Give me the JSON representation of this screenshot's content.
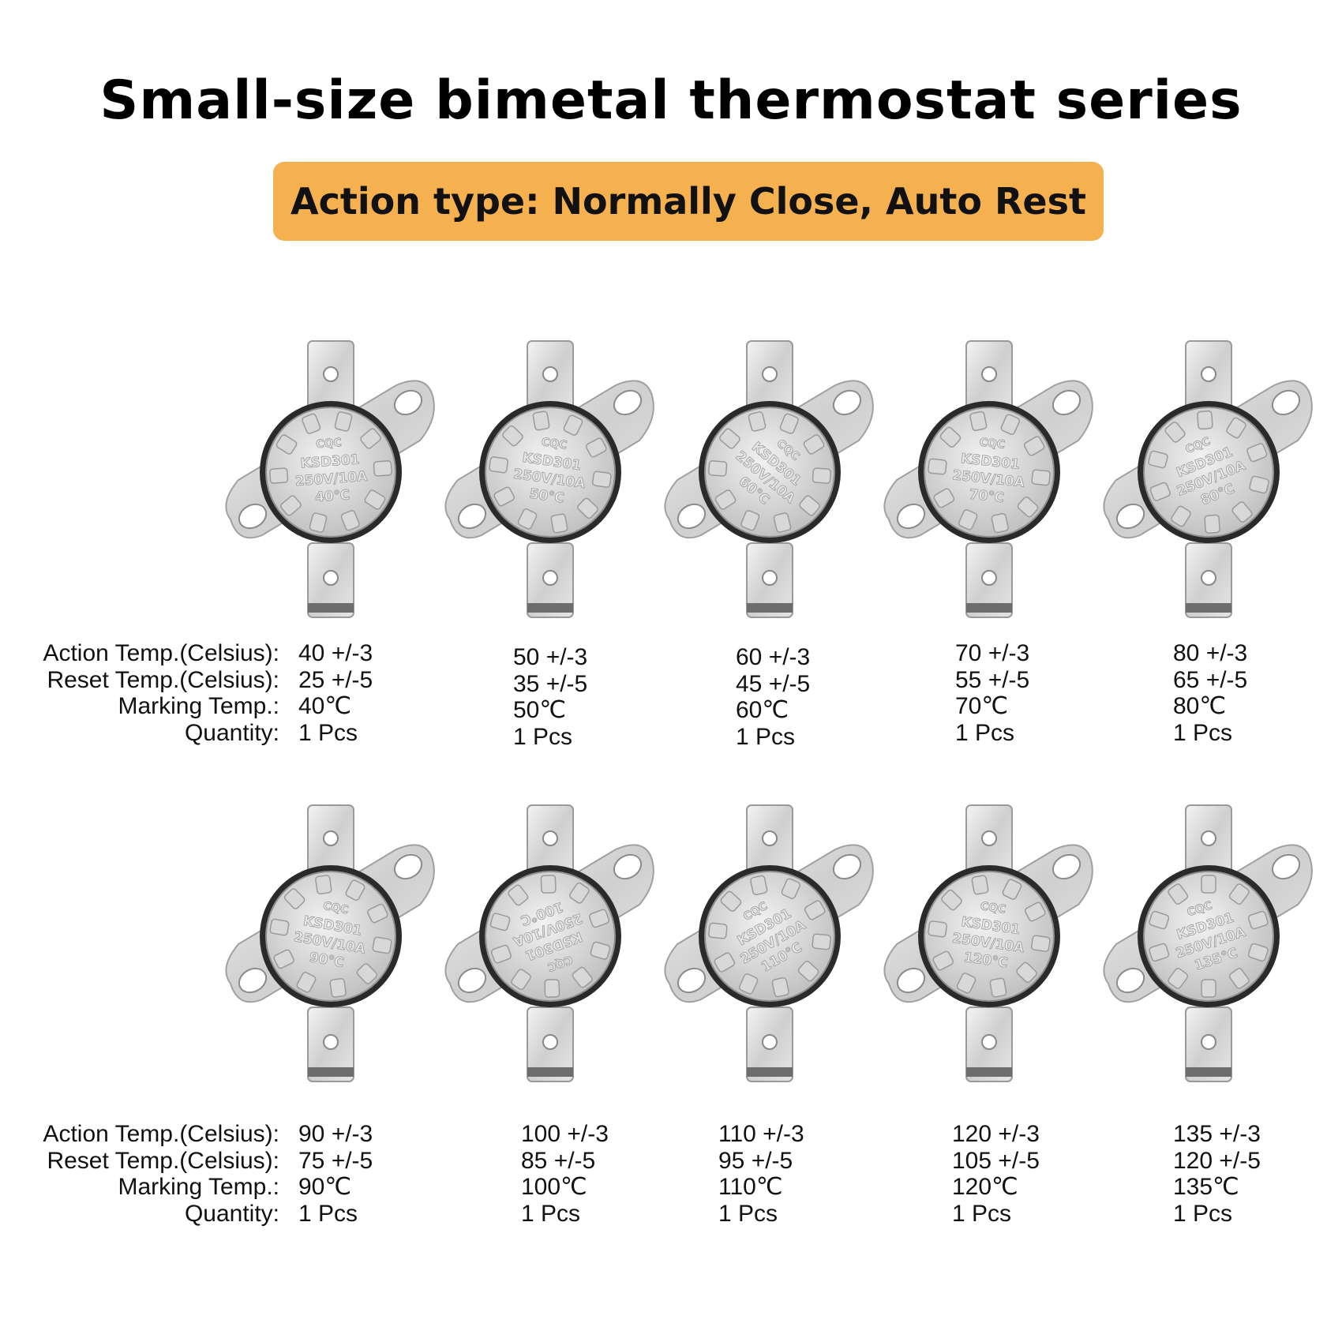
{
  "title": "Small-size bimetal thermostat series",
  "banner": "Action type: Normally Close, Auto Rest",
  "labels": {
    "action": "Action Temp.(Celsius):",
    "reset": "Reset  Temp.(Celsius):",
    "marking": "Marking Temp.:",
    "quantity": "Quantity:"
  },
  "products": [
    {
      "action": "40 +/-3",
      "reset": "25 +/-5",
      "marking": "40℃",
      "quantity": "1 Pcs",
      "stamp": [
        "CQC",
        "KSD301",
        "250V/10A",
        "40℃"
      ]
    },
    {
      "action": "50 +/-3",
      "reset": "35 +/-5",
      "marking": "50℃",
      "quantity": "1 Pcs",
      "stamp": [
        "CQC",
        "KSD301",
        "250V/10A",
        "50℃"
      ]
    },
    {
      "action": "60 +/-3",
      "reset": "45 +/-5",
      "marking": "60℃",
      "quantity": "1 Pcs",
      "stamp": [
        "CQC",
        "KSD301",
        "250V/10A",
        "60℃"
      ]
    },
    {
      "action": "70 +/-3",
      "reset": "55 +/-5",
      "marking": "70℃",
      "quantity": "1 Pcs",
      "stamp": [
        "CQC",
        "KSD301",
        "250V/10A",
        "70℃"
      ]
    },
    {
      "action": "80 +/-3",
      "reset": "65 +/-5",
      "marking": "80℃",
      "quantity": "1 Pcs",
      "stamp": [
        "CQC",
        "KSD301",
        "250V/10A",
        "80℃"
      ]
    },
    {
      "action": "90 +/-3",
      "reset": "75 +/-5",
      "marking": "90℃",
      "quantity": "1 Pcs",
      "stamp": [
        "CQC",
        "KSD301",
        "250V/10A",
        "90℃"
      ]
    },
    {
      "action": "100 +/-3",
      "reset": "85 +/-5",
      "marking": "100℃",
      "quantity": "1 Pcs",
      "stamp": [
        "CQC",
        "KSD301",
        "250V/10A",
        "100℃"
      ]
    },
    {
      "action": "110 +/-3",
      "reset": "95 +/-5",
      "marking": "110℃",
      "quantity": "1 Pcs",
      "stamp": [
        "CQC",
        "KSD301",
        "250V/10A",
        "110℃"
      ]
    },
    {
      "action": "120 +/-3",
      "reset": "105 +/-5",
      "marking": "120℃",
      "quantity": "1 Pcs",
      "stamp": [
        "CQC",
        "KSD301",
        "250V/10A",
        "120℃"
      ]
    },
    {
      "action": "135 +/-3",
      "reset": "120 +/-5",
      "marking": "135℃",
      "quantity": "1 Pcs",
      "stamp": [
        "CQC",
        "KSD301",
        "250V/10A",
        "135℃"
      ]
    }
  ]
}
